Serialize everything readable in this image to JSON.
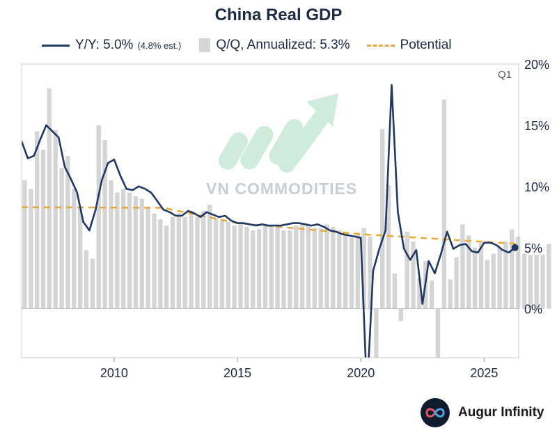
{
  "title": "China Real GDP",
  "legend": {
    "yy_label": "Y/Y: 5.0%",
    "yy_note": "(4.8% est.)",
    "qq_label": "Q/Q, Annualized: 5.3%",
    "potential_label": "Potential"
  },
  "colors": {
    "yy_line": "#1f3864",
    "qq_bar": "#d5d5d5",
    "potential": "#e8a838",
    "frame": "#cccccc",
    "watermark": "#b9c3cb",
    "watermark_arrow": "#8ed6b2"
  },
  "watermark": {
    "text": "VN COMMODITIES",
    "icon": "rising-arrow-icon"
  },
  "brand": {
    "name": "Augur Infinity",
    "icon": "infinity-icon"
  },
  "chart_data": {
    "type": "bar+line",
    "title": "China Real GDP",
    "annotation": "Q1",
    "x_ticks": [
      2010,
      2015,
      2020,
      2025
    ],
    "x_range": [
      2006.25,
      2026.4
    ],
    "y_ticks": [
      0,
      5,
      10,
      15,
      20
    ],
    "y_tick_labels": [
      "0%",
      "5%",
      "10%",
      "15%",
      "20%"
    ],
    "y_range": [
      -4,
      20
    ],
    "y_axis_side": "right",
    "bar_start": 2006.25,
    "bar_step": 0.25,
    "qq_annualized": [
      10.5,
      9.8,
      14.5,
      13.0,
      18.0,
      14.6,
      11.5,
      12.5,
      9.8,
      8.2,
      4.8,
      4.1,
      15.0,
      13.8,
      10.5,
      9.5,
      9.8,
      9.5,
      9.2,
      9.0,
      8.2,
      7.8,
      7.3,
      6.8,
      7.5,
      7.8,
      7.5,
      8.0,
      7.5,
      8.0,
      8.5,
      7.4,
      7.2,
      7.1,
      6.8,
      7.0,
      6.7,
      6.4,
      6.5,
      6.9,
      6.8,
      6.7,
      6.4,
      6.4,
      6.8,
      6.9,
      6.8,
      6.6,
      6.6,
      6.9,
      6.7,
      6.4,
      6.0,
      5.8,
      6.2,
      6.6,
      5.9,
      -9.8,
      14.7,
      10.1,
      2.9,
      -1.0,
      6.3,
      5.5,
      2.5,
      3.9,
      2.3,
      -4.0,
      17.1,
      2.4,
      4.2,
      6.9,
      6.0,
      5.0,
      5.4,
      4.0,
      4.5,
      5.0,
      5.5,
      6.5,
      5.9,
      4.5,
      4.4,
      4.4,
      4.4,
      5.3
    ],
    "yoy_start": 2006.25,
    "yoy_step": 0.25,
    "yoy": [
      13.7,
      12.3,
      12.5,
      13.8,
      15.0,
      14.5,
      14.0,
      11.6,
      10.6,
      9.5,
      7.1,
      6.4,
      8.1,
      10.5,
      11.9,
      12.2,
      10.9,
      9.8,
      9.7,
      10.0,
      9.8,
      9.5,
      8.8,
      8.1,
      7.9,
      7.6,
      7.6,
      8.0,
      7.8,
      7.5,
      7.9,
      7.7,
      7.5,
      7.6,
      7.2,
      7.0,
      7.0,
      6.9,
      6.8,
      6.9,
      6.8,
      6.8,
      6.8,
      6.9,
      7.0,
      7.0,
      6.9,
      6.8,
      6.9,
      6.7,
      6.4,
      6.3,
      6.1,
      6.0,
      5.9,
      5.8,
      -6.9,
      3.1,
      4.9,
      6.4,
      18.3,
      7.9,
      4.9,
      4.0,
      4.8,
      0.4,
      3.9,
      2.9,
      4.5,
      6.3,
      4.9,
      5.2,
      5.3,
      4.7,
      4.6,
      5.4,
      5.4,
      5.2,
      4.8,
      4.6,
      5.0
    ],
    "potential": [
      [
        2006.25,
        8.3
      ],
      [
        2012.0,
        8.25
      ],
      [
        2015.0,
        7.0
      ],
      [
        2020.0,
        6.1
      ],
      [
        2026.4,
        5.3
      ]
    ],
    "series": [
      {
        "name": "Y/Y",
        "type": "line"
      },
      {
        "name": "Q/Q, Annualized",
        "type": "bar"
      },
      {
        "name": "Potential",
        "type": "dashed-line"
      }
    ],
    "legend_position": "top"
  }
}
